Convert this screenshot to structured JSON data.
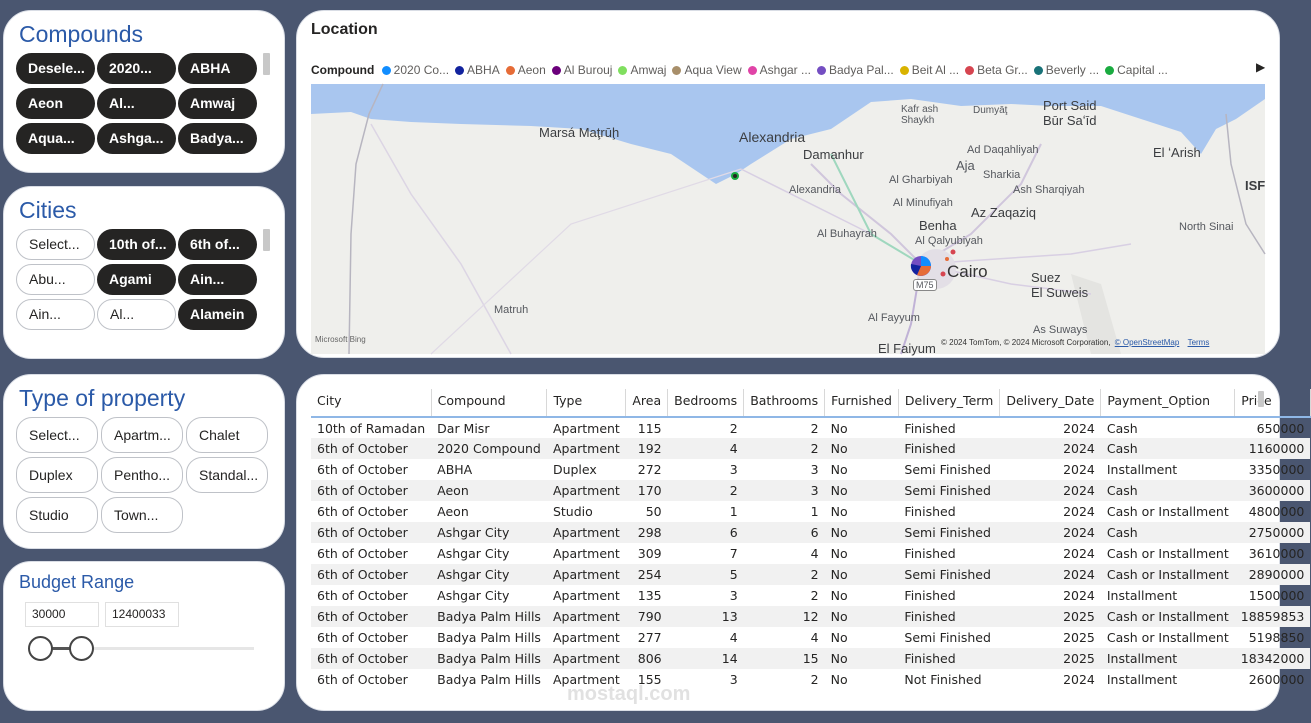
{
  "compounds": {
    "title": "Compounds",
    "chips": [
      "Desele...",
      "2020...",
      "ABHA",
      "Aeon",
      "Al...",
      "Amwaj",
      "Aqua...",
      "Ashga...",
      "Badya..."
    ]
  },
  "cities": {
    "title": "Cities",
    "chips": [
      "Select...",
      "10th of...",
      "6th of...",
      "Abu...",
      "Agami",
      "Ain...",
      "Ain...",
      "Al...",
      "Alamein"
    ]
  },
  "property_type": {
    "title": "Type of property",
    "chips": [
      "Select...",
      "Apartm...",
      "Chalet",
      "Duplex",
      "Pentho...",
      "Standal...",
      "Studio",
      "Town..."
    ]
  },
  "budget": {
    "title": "Budget Range",
    "min": "30000",
    "max": "12400033"
  },
  "map": {
    "title": "Location",
    "legend_label": "Compound",
    "legend": [
      {
        "name": "2020 Co...",
        "color": "#118dff"
      },
      {
        "name": "ABHA",
        "color": "#12239e"
      },
      {
        "name": "Aeon",
        "color": "#e66c37"
      },
      {
        "name": "Al Burouj",
        "color": "#6b007b"
      },
      {
        "name": "Amwaj",
        "color": "#80df5f"
      },
      {
        "name": "Aqua View",
        "color": "#a88f6a"
      },
      {
        "name": "Ashgar ...",
        "color": "#e044a7"
      },
      {
        "name": "Badya Pal...",
        "color": "#744ec2"
      },
      {
        "name": "Beit Al ...",
        "color": "#d9b300"
      },
      {
        "name": "Beta Gr...",
        "color": "#d64550"
      },
      {
        "name": "Beverly ...",
        "color": "#197278"
      },
      {
        "name": "Capital ...",
        "color": "#1aab40"
      }
    ],
    "labels": {
      "marsa": "Marsá Maţrūḩ",
      "alexandria": "Alexandria",
      "damanhur": "Damanhur",
      "alexandria_small": "Alexandria",
      "kafr": "Kafr ash\nShaykh",
      "dumyat": "Dumyāţ",
      "portsaid": "Port Said\nBūr Saʻīd",
      "aja": "Aja",
      "daqahliyah": "Ad Daqahliyah",
      "sharqiya": "Sharkia",
      "elarish": "El ʻArish",
      "gharbiyah": "Al Gharbiyah",
      "sharqiyah": "Ash Sharqiyah",
      "minufiyah": "Al Minufiyah",
      "zaqaziq": "Az Zaqaziq",
      "buhayrah": "Al Buhayrah",
      "benha": "Benha",
      "qalyubiyah": "Al Qalyubiyah",
      "northsinai": "North Sinai",
      "isr": "ISF",
      "cairo": "Cairo",
      "suez": "Suez\nEl Suweis",
      "matruh": "Matruh",
      "fayyum": "Al Fayyum",
      "suways": "As Suways",
      "elfaiyum": "El Faiyum",
      "m75": "M75",
      "bing": "Microsoft Bing",
      "copyright": "© 2024 TomTom, © 2024 Microsoft Corporation,",
      "osm": "© OpenStreetMap",
      "terms": "Terms"
    }
  },
  "table": {
    "headers": [
      "City",
      "Compound",
      "Type",
      "Area",
      "Bedrooms",
      "Bathrooms",
      "Furnished",
      "Delivery_Term",
      "Delivery_Date",
      "Payment_Option",
      "Price"
    ],
    "rows": [
      [
        "10th of Ramadan",
        "Dar Misr",
        "Apartment",
        "115",
        "2",
        "2",
        "No",
        "Finished",
        "2024",
        "Cash",
        "650000"
      ],
      [
        "6th of October",
        "2020 Compound",
        "Apartment",
        "192",
        "4",
        "2",
        "No",
        "Finished",
        "2024",
        "Cash",
        "1160000"
      ],
      [
        "6th of October",
        "ABHA",
        "Duplex",
        "272",
        "3",
        "3",
        "No",
        "Semi Finished",
        "2024",
        "Installment",
        "3350000"
      ],
      [
        "6th of October",
        "Aeon",
        "Apartment",
        "170",
        "2",
        "3",
        "No",
        "Semi Finished",
        "2024",
        "Cash",
        "3600000"
      ],
      [
        "6th of October",
        "Aeon",
        "Studio",
        "50",
        "1",
        "1",
        "No",
        "Finished",
        "2024",
        "Cash or Installment",
        "4800000"
      ],
      [
        "6th of October",
        "Ashgar City",
        "Apartment",
        "298",
        "6",
        "6",
        "No",
        "Semi Finished",
        "2024",
        "Cash",
        "2750000"
      ],
      [
        "6th of October",
        "Ashgar City",
        "Apartment",
        "309",
        "7",
        "4",
        "No",
        "Finished",
        "2024",
        "Cash or Installment",
        "3610000"
      ],
      [
        "6th of October",
        "Ashgar City",
        "Apartment",
        "254",
        "5",
        "2",
        "No",
        "Semi Finished",
        "2024",
        "Cash or Installment",
        "2890000"
      ],
      [
        "6th of October",
        "Ashgar City",
        "Apartment",
        "135",
        "3",
        "2",
        "No",
        "Finished",
        "2024",
        "Installment",
        "1500000"
      ],
      [
        "6th of October",
        "Badya Palm Hills",
        "Apartment",
        "790",
        "13",
        "12",
        "No",
        "Finished",
        "2025",
        "Cash or Installment",
        "18859853"
      ],
      [
        "6th of October",
        "Badya Palm Hills",
        "Apartment",
        "277",
        "4",
        "4",
        "No",
        "Semi Finished",
        "2025",
        "Cash or Installment",
        "5198850"
      ],
      [
        "6th of October",
        "Badya Palm Hills",
        "Apartment",
        "806",
        "14",
        "15",
        "No",
        "Finished",
        "2025",
        "Installment",
        "18342000"
      ],
      [
        "6th of October",
        "Badya Palm Hills",
        "Apartment",
        "155",
        "3",
        "2",
        "No",
        "Not Finished",
        "2024",
        "Installment",
        "2600000"
      ]
    ]
  },
  "watermark": "mostaql.com"
}
